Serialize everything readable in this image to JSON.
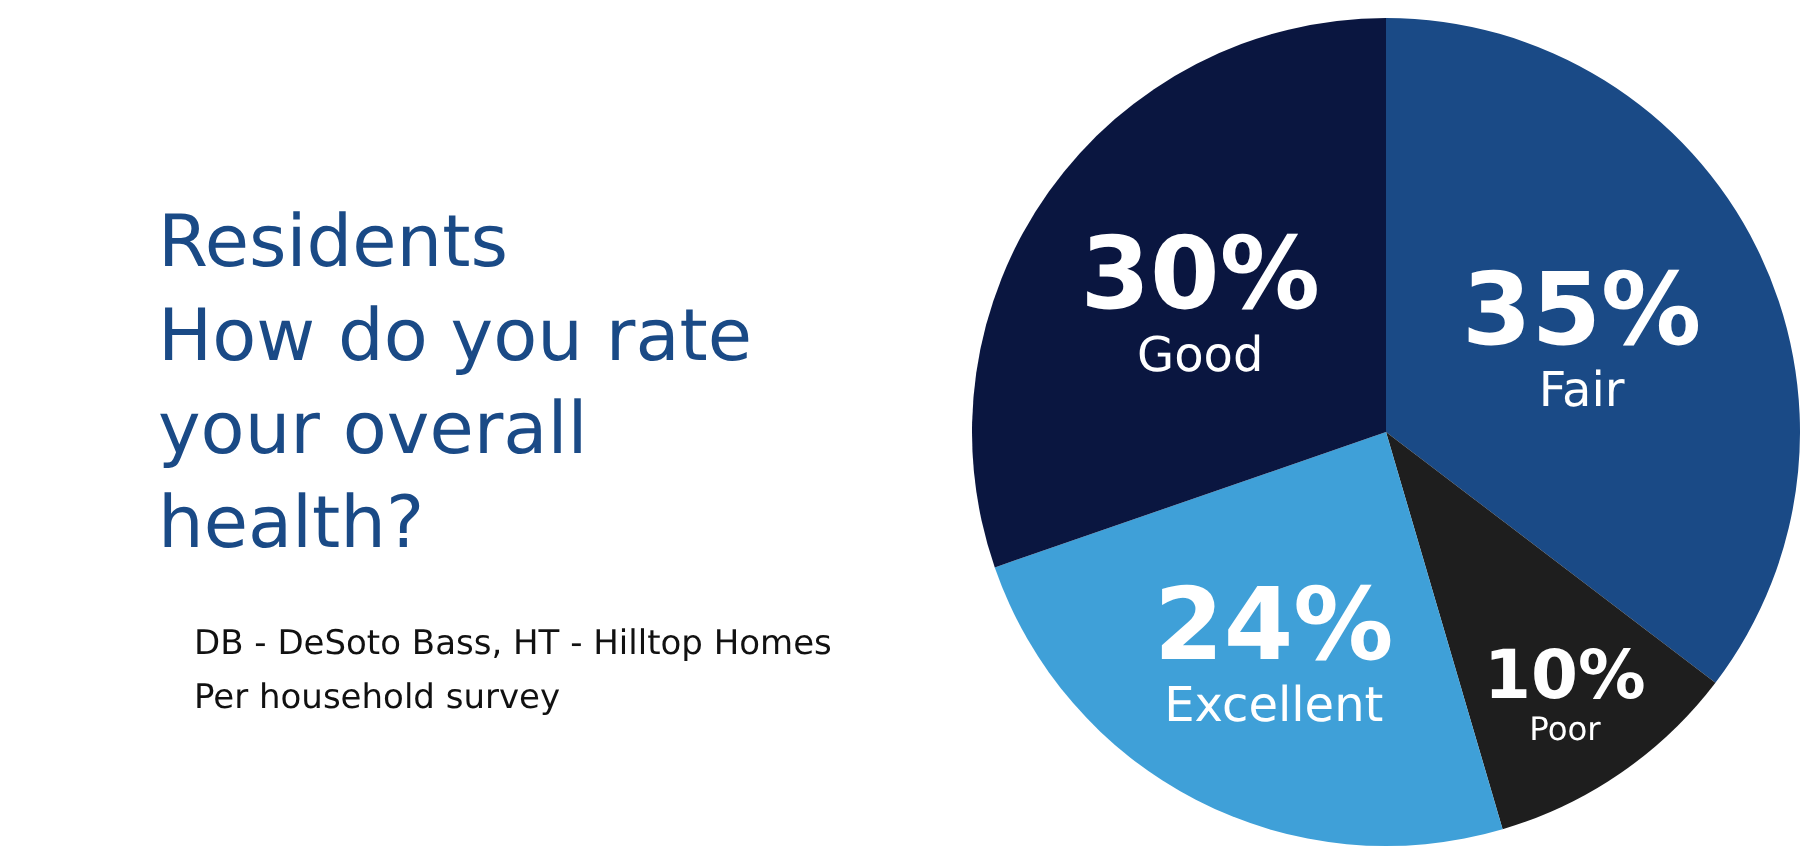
{
  "chart_data": {
    "type": "pie",
    "title": "Residents\nHow do you rate\nyour overall\nhealth?",
    "categories": [
      "Fair",
      "Poor",
      "Excellent",
      "Good"
    ],
    "values": [
      35,
      10,
      24,
      30
    ],
    "colors": [
      "#1a4a86",
      "#1e1e1e",
      "#3fa0d8",
      "#0a1640"
    ],
    "value_labels": [
      "35%",
      "10%",
      "24%",
      "30%"
    ],
    "annotations": [
      "DB - DeSoto Bass, HT - Hilltop Homes",
      "Per household survey"
    ],
    "legend": false
  }
}
